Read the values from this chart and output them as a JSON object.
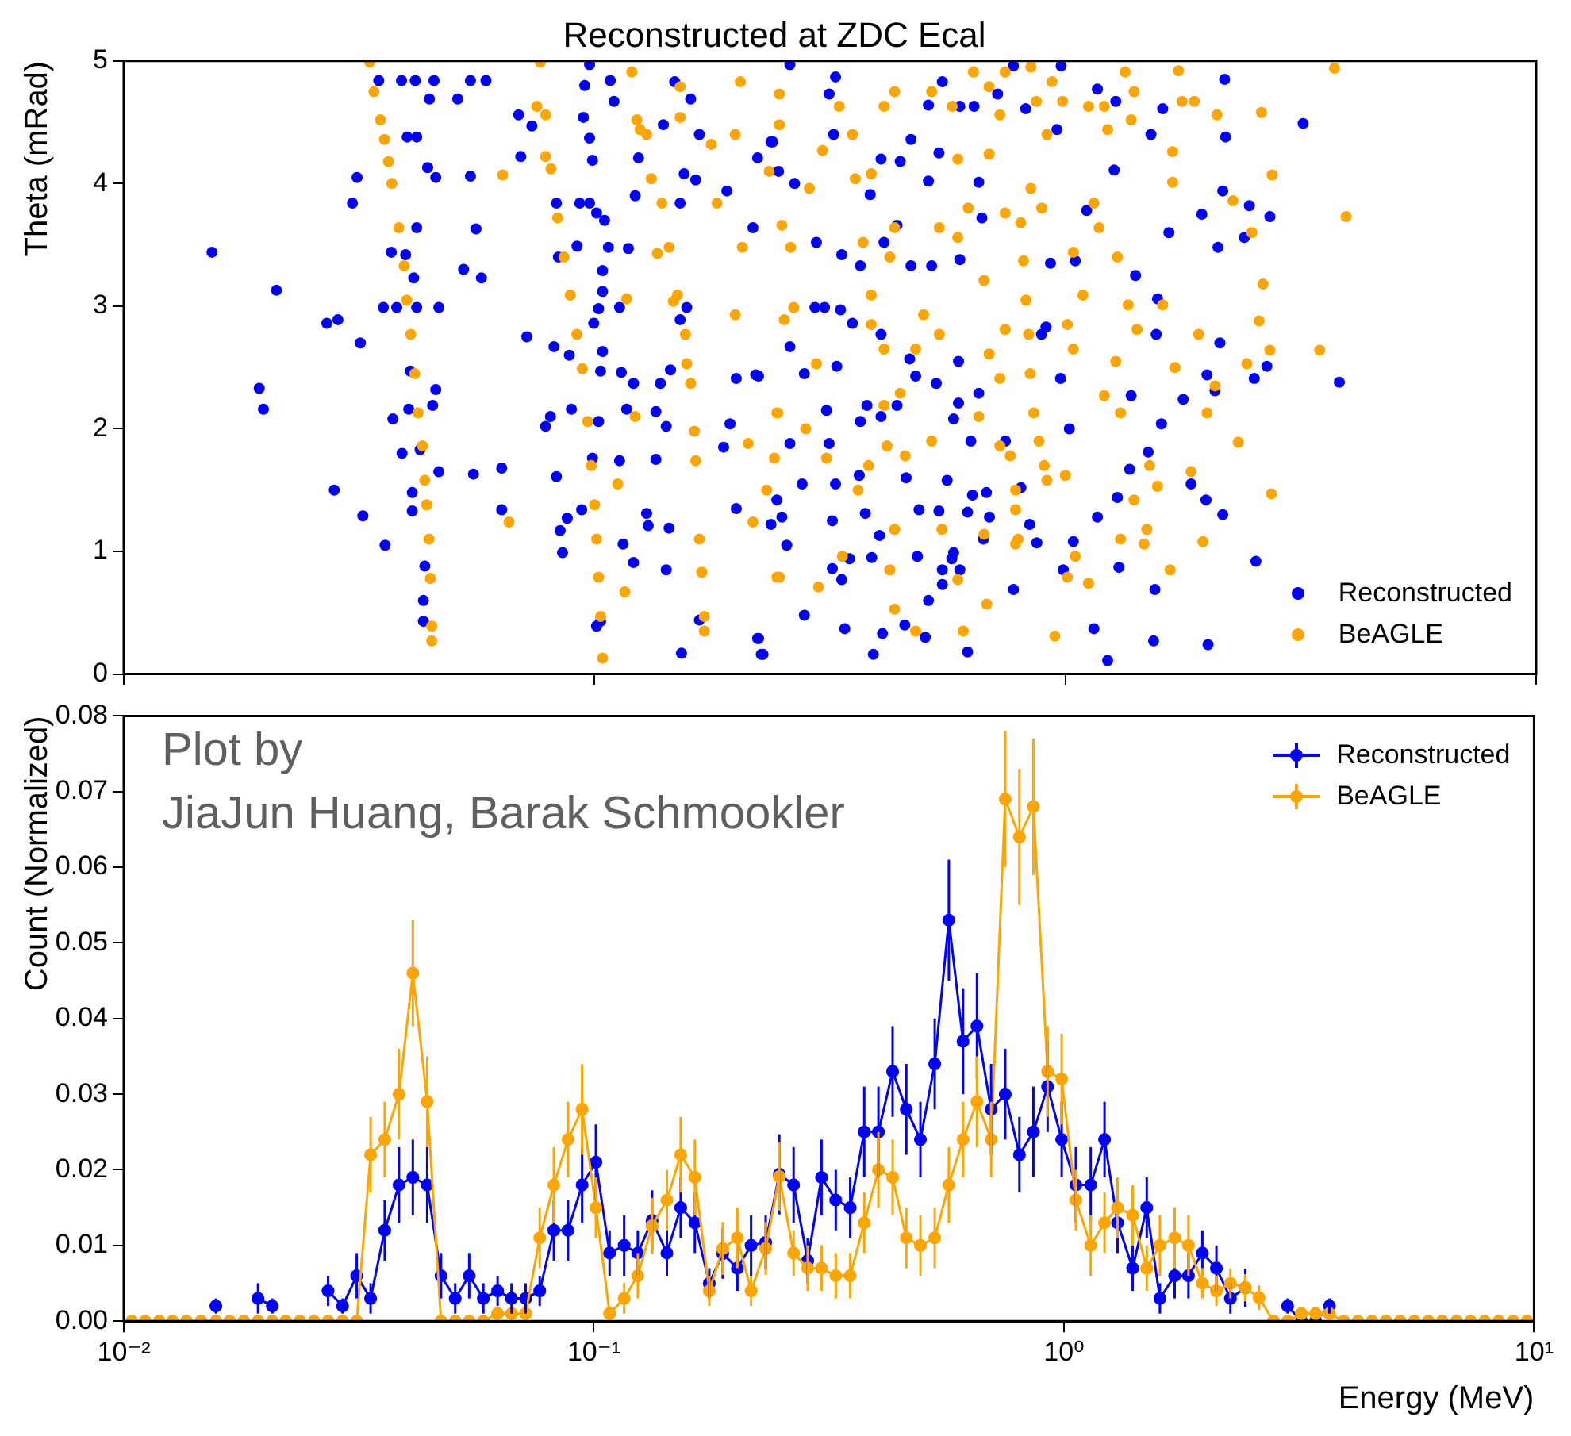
{
  "chart_data": [
    {
      "type": "scatter",
      "title": "Reconstructed at ZDC Ecal",
      "ylabel": "Theta (mRad)",
      "log": "x",
      "xlim": [
        0.01,
        10
      ],
      "xticks": [
        0.01,
        0.1,
        1,
        10
      ],
      "ylim": [
        0,
        5
      ],
      "yticks": [
        0,
        1,
        2,
        3,
        4,
        5
      ],
      "tick_labels": "y",
      "legend": "bottom right",
      "marker": "circle",
      "series": [
        {
          "name": "Reconstructed",
          "color": "#0000ff",
          "x": [
            0.0154,
            0.0211,
            0.0194,
            0.0198,
            0.027,
            0.0285,
            0.028,
            0.0322,
            0.0318,
            0.0306,
            0.0313,
            0.0359,
            0.0373,
            0.039,
            0.0356,
            0.038,
            0.0419,
            0.0467,
            0.04,
            0.0419,
            0.0348,
            0.0389,
            0.0416,
            0.0456,
            0.0446,
            0.0442,
            0.046,
            0.0419,
            0.037,
            0.0397,
            0.0413,
            0.0406,
            0.0403,
            0.0453,
            0.046,
            0.041,
            0.0426,
            0.041,
            0.0436,
            0.0433,
            0.0433,
            0.0467,
            0.0545,
            0.0588,
            0.0512,
            0.0545,
            0.056,
            0.0527,
            0.0575,
            0.0553,
            0.0635,
            0.0635,
            0.0697,
            0.069,
            0.0736,
            0.0718,
            0.082,
            0.0884,
            0.0787,
            0.0806,
            0.083,
            0.0845,
            0.0855,
            0.0875,
            0.0939,
            0.0893,
            0.0838,
            0.083,
            0.0918,
            0.093,
            0.0976,
            0.0947,
            0.0953,
            0.0976,
            0.0976,
            0.099,
            0.101,
            0.105,
            0.107,
            0.104,
            0.104,
            0.102,
            0.0996,
            0.104,
            0.103,
            0.102,
            0.099,
            0.101,
            0.103,
            0.108,
            0.11,
            0.124,
            0.122,
            0.118,
            0.113,
            0.114,
            0.121,
            0.117,
            0.113,
            0.115,
            0.121,
            0.129,
            0.13,
            0.135,
            0.142,
            0.135,
            0.138,
            0.145,
            0.144,
            0.142,
            0.153,
            0.157,
            0.152,
            0.152,
            0.155,
            0.14,
            0.148,
            0.16,
            0.167,
            0.164,
            0.167,
            0.191,
            0.217,
            0.222,
            0.237,
            0.222,
            0.228,
            0.2,
            0.194,
            0.188,
            0.22,
            0.237,
            0.244,
            0.2,
            3.2,
            3.82,
            2.72,
            2.46,
            2.16,
            2.19,
            2.18,
            2.11,
            1.95,
            2.4,
            2.13,
            2.52,
            2.68,
            2.0,
            2.08,
            1.85,
            1.99,
            2.16,
            2.54,
            2.01,
            1.54,
            1.55,
            1.6,
            1.5,
            1.56,
            1.57,
            1.41,
            1.66,
            1.61,
            1.52,
            1.78,
            1.38,
            1.37,
            1.29,
            1.3,
            1.23,
            1.15,
            1.28,
            1.27,
            1.17,
            1.11,
            1.05,
            0.977,
            1.02,
            1.17,
            1.04,
            0.99,
            0.91,
            0.93,
            0.89,
            0.96,
            0.98,
            0.87,
            0.84,
            0.805,
            0.776,
            0.746,
            0.69,
            0.67,
            0.68,
            0.635,
            0.63,
            0.579,
            0.574,
            0.62,
            0.593,
            0.655,
            0.593,
            0.579,
            0.665,
            0.597,
            0.655,
            0.64,
            0.597,
            0.718,
            0.824,
            0.776,
            0.548,
            0.512,
            0.539,
            0.47,
            0.512,
            0.446,
            0.406,
            0.385,
            0.439,
            0.47,
            0.52,
            0.412,
            0.367,
            0.335,
            0.296,
            0.266,
            0.246,
            0.239,
            0.322,
            0.315,
            0.325,
            0.26,
            0.294,
            0.308,
            0.333,
            0.406,
            0.353,
            0.467,
            0.481,
            0.532,
            0.439,
            0.379,
            0.327,
            0.26,
            0.223,
            0.279,
            0.311,
            0.406,
            0.367,
            0.26,
            0.276,
            0.315,
            0.325,
            0.365,
            0.403,
            0.459,
            0.561,
            0.539,
            0.62,
            0.489,
            0.376,
            0.32,
            0.25,
            0.256,
            0.32,
            0.348,
            0.388,
            0.485,
            0.548,
            0.597,
            0.512,
            0.548,
            0.335,
            0.279,
            0.34,
            0.409,
            0.456,
            0.504,
            0.391,
            0.226,
            0.223
          ],
          "values": [
            3.44,
            3.13,
            2.33,
            2.16,
            2.86,
            2.89,
            1.5,
            1.29,
            2.7,
            3.84,
            4.05,
            1.05,
            2.08,
            1.8,
            2.99,
            2.99,
            2.99,
            2.99,
            4.38,
            4.38,
            4.84,
            4.84,
            4.84,
            4.84,
            4.69,
            4.13,
            4.05,
            3.64,
            3.44,
            3.42,
            3.23,
            2.47,
            2.16,
            2.19,
            2.32,
            1.48,
            1.83,
            1.33,
            0.88,
            0.6,
            0.43,
            1.65,
            4.84,
            4.84,
            4.69,
            4.06,
            3.63,
            3.3,
            3.23,
            1.63,
            1.68,
            1.34,
            4.22,
            4.56,
            4.47,
            2.75,
            2.67,
            2.6,
            2.02,
            2.1,
            1.61,
            1.17,
            0.99,
            1.27,
            1.34,
            2.16,
            3.4,
            3.84,
            3.49,
            3.84,
            3.84,
            4.54,
            4.8,
            4.97,
            4.37,
            4.19,
            3.76,
            3.7,
            3.48,
            3.29,
            3.12,
            2.98,
            2.86,
            2.63,
            2.47,
            2.06,
            1.76,
            0.39,
            0.43,
            4.84,
            4.67,
            4.21,
            3.9,
            3.47,
            2.99,
            2.46,
            2.37,
            2.16,
            1.74,
            1.06,
            0.91,
            1.31,
            1.21,
            1.75,
            2.02,
            2.14,
            2.37,
            2.48,
            1.19,
            0.85,
            0.17,
            2.99,
            2.89,
            3.84,
            4.08,
            4.48,
            4.83,
            4.69,
            4.4,
            4.03,
            0.44,
            3.94,
            3.64,
            4.21,
            4.34,
            0.29,
            0.16,
            2.41,
            2.04,
            1.85,
            2.44,
            1.22,
            1.42,
            1.35,
            4.49,
            2.38,
            3.73,
            3.82,
            3.94,
            4.38,
            4.85,
            3.48,
            3.75,
            3.56,
            2.7,
            2.41,
            2.51,
            2.44,
            2.31,
            1.55,
            1.42,
            1.3,
            0.92,
            0.24,
            0.27,
            0.69,
            2.04,
            1.81,
            2.77,
            3.06,
            3.25,
            3.6,
            4.61,
            4.4,
            2.24,
            2.27,
            1.67,
            1.44,
            0.87,
            0.11,
            0.37,
            4.67,
            4.11,
            4.77,
            3.78,
            3.37,
            2.41,
            2.0,
            1.28,
            1.08,
            0.85,
            2.83,
            3.35,
            2.77,
            4.44,
            4.96,
            1.07,
            1.22,
            1.52,
            0.69,
            1.9,
            1.28,
            1.1,
            1.48,
            1.46,
            1.9,
            0.99,
            0.94,
            0.18,
            2.21,
            2.29,
            2.55,
            2.08,
            3.72,
            3.38,
            4.01,
            4.63,
            4.63,
            4.73,
            4.61,
            4.96,
            4.83,
            4.64,
            4.25,
            4.36,
            4.02,
            4.18,
            4.2,
            3.91,
            3.66,
            3.33,
            3.33,
            3.52,
            3.33,
            3.42,
            3.52,
            4.0,
            4.1,
            4.34,
            4.4,
            4.73,
            4.87,
            4.97,
            2.99,
            2.99,
            2.97,
            2.77,
            2.86,
            2.57,
            2.43,
            2.37,
            2.19,
            2.19,
            2.51,
            2.67,
            2.43,
            2.45,
            2.15,
            2.1,
            2.06,
            1.88,
            1.55,
            1.88,
            1.55,
            1.62,
            1.13,
            1.6,
            1.58,
            1.33,
            1.32,
            1.34,
            1.31,
            1.25,
            1.28,
            1.05,
            0.86,
            0.94,
            0.95,
            0.96,
            0.85,
            0.85,
            0.6,
            0.73,
            0.77,
            0.48,
            0.37,
            0.33,
            0.4,
            0.3,
            0.16,
            0.16,
            0.29
          ]
        },
        {
          "name": "BeAGLE",
          "color": "#ffa500",
          "x": [
            0.0333,
            0.034,
            0.0351,
            0.0358,
            0.0365,
            0.0371,
            0.0384,
            0.0394,
            0.0399,
            0.0407,
            0.0415,
            0.0422,
            0.0431,
            0.0436,
            0.044,
            0.0445,
            0.0448,
            0.0451,
            0.0451,
            0.0767,
            0.0754,
            0.0787,
            0.0787,
            0.0808,
            0.0835,
            0.0861,
            0.0888,
            0.0917,
            0.0942,
            0.0967,
            0.0984,
            0.1,
            0.101,
            0.102,
            0.103,
            0.104,
            0.0638,
            0.0658,
            0.12,
            0.125,
            0.132,
            0.139,
            0.144,
            0.15,
            0.156,
            0.157,
            0.16,
            0.163,
            0.164,
            0.167,
            0.169,
            0.171,
            0.171,
            0.136,
            0.147,
            0.117,
            0.112,
            0.122,
            0.116,
            0.123,
            0.129,
            0.152,
            0.152,
            0.177,
            0.199,
            0.206,
            0.199,
            0.212,
            0.244,
            0.217,
            0.244,
            0.182,
            0.204,
            0.804,
            0.815,
            0.825,
            0.836,
            0.842,
            0.857,
            0.879,
            0.902,
            0.914,
            0.845,
            0.891,
            0.784,
            0.794,
            0.914,
            0.868,
            3.73,
            3.95,
            3.47,
            2.74,
            2.75,
            2.61,
            2.63,
            2.58,
            2.72,
            2.43,
            2.49,
            2.33,
            2.27,
            2.0,
            1.92,
            2.08,
            1.96,
            1.85,
            1.69,
            1.74,
            1.77,
            1.88,
            2.1,
            1.67,
            1.49,
            1.51,
            1.57,
            1.71,
            1.61,
            1.69,
            1.4,
            1.34,
            1.38,
            1.21,
            1.23,
            1.15,
            1.18,
            1.29,
            1.36,
            1.42,
            1.28,
            1.31,
            1.21,
            1.4,
            1.47,
            1.31,
            1.12,
            1.05,
            0.95,
            1.01,
            1.0,
            1.04,
            1.01,
            1.09,
            1.04,
            1.12,
            0.987,
            0.937,
            0.845,
            0.745,
            0.689,
            0.638,
            0.726,
            0.689,
            0.745,
            0.622,
            0.672,
            0.591,
            0.745,
            0.689,
            0.726,
            0.655,
            0.764,
            0.726,
            0.784,
            0.672,
            0.784,
            0.681,
            0.607,
            0.547,
            0.591,
            0.52,
            0.54,
            0.481,
            0.5,
            0.54,
            0.591,
            0.575,
            0.52,
            0.434,
            0.412,
            0.353,
            0.331,
            0.387,
            0.358,
            0.372,
            0.434,
            0.424,
            0.387,
            0.412,
            0.387,
            0.446,
            0.412,
            0.382,
            0.418,
            0.363,
            0.457,
            0.434,
            0.424,
            0.434,
            0.481,
            0.299,
            0.336,
            0.311,
            0.296,
            0.281,
            0.247,
            0.245,
            0.241,
            0.232,
            0.265,
            0.253,
            0.25,
            0.261,
            0.247,
            0.247,
            0.305,
            0.286,
            0.235
          ],
          "values": [
            4.99,
            4.75,
            4.52,
            4.36,
            4.18,
            4.0,
            3.64,
            3.33,
            3.05,
            2.77,
            2.45,
            2.13,
            1.86,
            1.58,
            1.38,
            1.1,
            0.78,
            0.39,
            0.27,
            4.99,
            4.63,
            4.56,
            4.22,
            4.12,
            3.72,
            3.4,
            3.09,
            2.77,
            2.49,
            2.06,
            1.7,
            1.38,
            1.1,
            0.79,
            0.47,
            0.13,
            4.07,
            1.24,
            4.91,
            4.44,
            4.04,
            3.84,
            3.48,
            3.09,
            2.77,
            2.53,
            2.37,
            1.98,
            1.74,
            1.1,
            0.83,
            0.47,
            0.35,
            3.43,
            3.04,
            3.06,
            1.55,
            2.1,
            0.67,
            4.52,
            4.4,
            4.79,
            4.54,
            4.32,
            4.4,
            3.48,
            2.93,
            1.88,
            0.79,
            1.24,
            2.13,
            3.84,
            4.83,
            3.68,
            3.37,
            3.05,
            2.77,
            2.45,
            2.13,
            1.9,
            1.7,
            1.58,
            3.96,
            3.8,
            1.34,
            1.1,
            4.4,
            4.67,
            4.94,
            3.73,
            2.64,
            1.47,
            4.07,
            4.58,
            3.18,
            2.88,
            2.64,
            2.53,
            3.6,
            1.89,
            3.86,
            2.13,
            2.77,
            2.35,
            1.08,
            1.65,
            4.01,
            4.92,
            4.67,
            4.67,
            4.56,
            0.85,
            1.18,
            1.7,
            1.53,
            2.5,
            3.01,
            4.26,
            4.75,
            4.91,
            4.52,
            4.63,
            4.44,
            3.84,
            3.64,
            3.4,
            3.01,
            2.81,
            2.55,
            2.13,
            2.27,
            1.42,
            1.06,
            1.1,
            0.74,
            0.96,
            0.31,
            0.79,
            1.62,
            2.65,
            2.85,
            3.09,
            3.44,
            4.63,
            4.67,
            4.83,
            4.95,
            4.91,
            4.79,
            4.91,
            4.56,
            4.24,
            3.76,
            3.8,
            3.21,
            3.56,
            2.81,
            2.61,
            2.41,
            2.1,
            1.78,
            1.86,
            1.5,
            1.14,
            1.06,
            0.57,
            0.35,
            1.18,
            0.77,
            1.9,
            2.77,
            2.65,
            2.93,
            3.64,
            4.2,
            4.63,
            4.75,
            4.75,
            4.63,
            4.4,
            4.63,
            4.08,
            4.04,
            3.52,
            3.64,
            3.4,
            3.09,
            2.65,
            2.85,
            2.29,
            2.19,
            1.7,
            1.86,
            1.5,
            1.78,
            1.18,
            0.85,
            0.53,
            0.35,
            0.71,
            0.96,
            1.76,
            2.53,
            2.0,
            0.79,
            2.13,
            1.76,
            1.5,
            2.99,
            2.89,
            3.66,
            3.48,
            4.48,
            4.73,
            4.27,
            3.96,
            4.1
          ]
        }
      ]
    },
    {
      "type": "line",
      "xlabel": "Energy (MeV)",
      "ylabel": "Count (Normalized)",
      "log": "x",
      "xlim": [
        0.01,
        10
      ],
      "xticks": [
        {
          "value": 0.01,
          "label": "10⁻²"
        },
        {
          "value": 0.1,
          "label": "10⁻¹"
        },
        {
          "value": 1,
          "label": "10⁰"
        },
        {
          "value": 10,
          "label": "10¹"
        }
      ],
      "ylim": [
        0,
        0.08
      ],
      "yticks": [
        {
          "value": 0,
          "label": "0.00"
        },
        {
          "value": 0.01,
          "label": "0.01"
        },
        {
          "value": 0.02,
          "label": "0.02"
        },
        {
          "value": 0.03,
          "label": "0.03"
        },
        {
          "value": 0.04,
          "label": "0.04"
        },
        {
          "value": 0.05,
          "label": "0.05"
        },
        {
          "value": 0.06,
          "label": "0.06"
        },
        {
          "value": 0.07,
          "label": "0.07"
        },
        {
          "value": 0.08,
          "label": "0.08"
        }
      ],
      "legend": "top right",
      "marker": "circle",
      "line_style": "solid",
      "annotations": [
        "Plot by",
        "JiaJun Huang, Barak Schmookler"
      ],
      "x": [
        0.0104,
        0.0111,
        0.0119,
        0.0127,
        0.0136,
        0.0146,
        0.0157,
        0.0168,
        0.018,
        0.0193,
        0.0207,
        0.0221,
        0.0237,
        0.0254,
        0.0272,
        0.0292,
        0.0313,
        0.0335,
        0.0359,
        0.0385,
        0.0412,
        0.0442,
        0.0473,
        0.0507,
        0.0543,
        0.0582,
        0.0624,
        0.0668,
        0.0716,
        0.0767,
        0.0822,
        0.0881,
        0.0944,
        0.101,
        0.108,
        0.116,
        0.124,
        0.133,
        0.143,
        0.153,
        0.164,
        0.176,
        0.188,
        0.202,
        0.216,
        0.232,
        0.248,
        0.266,
        0.285,
        0.305,
        0.327,
        0.351,
        0.376,
        0.403,
        0.432,
        0.462,
        0.495,
        0.531,
        0.569,
        0.61,
        0.653,
        0.7,
        0.75,
        0.804,
        0.861,
        0.923,
        0.989,
        1.06,
        1.14,
        1.22,
        1.3,
        1.4,
        1.5,
        1.6,
        1.72,
        1.84,
        1.97,
        2.11,
        2.26,
        2.43,
        2.6,
        2.79,
        2.99,
        3.2,
        3.43,
        3.67,
        3.94,
        4.22,
        4.52,
        4.84,
        5.19,
        5.56,
        5.96,
        6.38,
        6.84,
        7.33,
        7.85,
        8.41,
        9.02,
        9.66
      ],
      "series": [
        {
          "name": "Reconstructed",
          "color": "#0000ff",
          "values": [
            null,
            null,
            null,
            null,
            null,
            null,
            0.002,
            null,
            null,
            0.003,
            0.002,
            null,
            null,
            null,
            0.004,
            0.002,
            0.006,
            0.003,
            0.012,
            0.018,
            0.019,
            0.018,
            0.006,
            0.003,
            0.006,
            0.003,
            0.004,
            0.003,
            0.003,
            0.004,
            0.012,
            0.012,
            0.018,
            0.021,
            0.009,
            0.01,
            0.009,
            0.0133,
            0.009,
            0.015,
            0.013,
            0.005,
            0.0089,
            0.007,
            0.01,
            0.0104,
            0.0194,
            0.018,
            0.008,
            0.019,
            0.016,
            0.015,
            0.025,
            0.025,
            0.033,
            0.028,
            0.024,
            0.034,
            0.053,
            0.037,
            0.039,
            0.028,
            0.03,
            0.022,
            0.025,
            0.031,
            0.024,
            0.018,
            0.018,
            0.024,
            0.013,
            0.007,
            0.015,
            0.003,
            0.006,
            0.006,
            0.009,
            0.007,
            0.003,
            0.0044,
            null,
            null,
            0.002,
            0,
            0,
            0.002,
            null,
            null,
            null,
            null,
            null,
            null,
            null,
            null,
            null,
            null,
            null,
            null,
            null,
            null
          ],
          "errors": [
            null,
            null,
            null,
            null,
            null,
            null,
            0.001,
            null,
            null,
            0.002,
            0.001,
            null,
            null,
            null,
            0.002,
            0.001,
            0.003,
            0.002,
            0.004,
            0.005,
            0.005,
            0.005,
            0.003,
            0.002,
            0.003,
            0.002,
            0.002,
            0.002,
            0.002,
            0.002,
            0.004,
            0.004,
            0.005,
            0.005,
            0.003,
            0.004,
            0.003,
            0.004,
            0.003,
            0.004,
            0.004,
            0.002,
            0.0033,
            0.003,
            0.004,
            0.0036,
            0.0053,
            0.005,
            0.003,
            0.005,
            0.004,
            0.004,
            0.006,
            0.006,
            0.006,
            0.006,
            0.005,
            0.006,
            0.008,
            0.007,
            0.007,
            0.006,
            0.006,
            0.005,
            0.006,
            0.006,
            0.005,
            0.005,
            0.005,
            0.005,
            0.004,
            0.003,
            0.004,
            0.002,
            0.003,
            0.003,
            0.003,
            0.003,
            0.002,
            0.0025,
            null,
            null,
            0.001,
            null,
            null,
            0.001,
            null,
            null,
            null,
            null,
            null,
            null,
            null,
            null,
            null,
            null,
            null,
            null,
            null,
            null
          ]
        },
        {
          "name": "BeAGLE",
          "color": "#ffa500",
          "values": [
            0,
            0,
            0,
            0,
            0,
            0,
            0,
            0,
            0,
            0,
            0,
            0,
            0,
            0,
            0,
            0,
            0,
            0.022,
            0.024,
            0.03,
            0.046,
            0.029,
            0,
            0,
            0,
            0,
            0.001,
            0.001,
            0.001,
            0.011,
            0.018,
            0.024,
            0.028,
            0.015,
            0.001,
            0.003,
            0.006,
            0.0126,
            0.016,
            0.022,
            0.019,
            0.004,
            0.0096,
            0.011,
            0.004,
            0.0096,
            0.0191,
            0.009,
            0.007,
            0.007,
            0.006,
            0.006,
            0.013,
            0.02,
            0.019,
            0.011,
            0.01,
            0.011,
            0.018,
            0.024,
            0.029,
            0.024,
            0.069,
            0.064,
            0.068,
            0.033,
            0.032,
            0.016,
            0.01,
            0.013,
            0.015,
            0.014,
            0.007,
            0.01,
            0.011,
            0.01,
            0.005,
            0.004,
            0.005,
            0.0044,
            0.0031,
            0,
            0,
            0.001,
            0.001,
            0.001,
            0,
            0,
            0,
            0,
            0,
            0,
            0,
            0,
            0,
            0,
            0,
            0,
            0,
            0
          ],
          "errors": [
            null,
            null,
            null,
            null,
            null,
            null,
            null,
            null,
            null,
            null,
            null,
            null,
            null,
            null,
            null,
            null,
            null,
            0.005,
            0.005,
            0.006,
            0.007,
            0.006,
            null,
            null,
            null,
            null,
            null,
            null,
            null,
            0.004,
            0.005,
            0.005,
            0.006,
            0.004,
            null,
            0.002,
            0.003,
            0.0037,
            0.004,
            0.005,
            0.005,
            0.002,
            0.0035,
            0.004,
            0.002,
            0.0035,
            0.0045,
            0.003,
            0.003,
            0.003,
            0.003,
            0.003,
            0.004,
            0.005,
            0.005,
            0.004,
            0.004,
            0.004,
            0.005,
            0.005,
            0.006,
            0.005,
            0.009,
            0.009,
            0.009,
            0.006,
            0.006,
            0.004,
            0.004,
            0.004,
            0.004,
            0.004,
            0.003,
            0.004,
            0.004,
            0.004,
            0.002,
            0.002,
            0.002,
            0.0018,
            0.0016,
            null,
            null,
            null,
            null,
            null,
            null,
            null,
            null,
            null,
            null,
            null,
            null,
            null,
            null,
            null,
            null,
            null,
            null,
            null
          ]
        }
      ]
    }
  ]
}
